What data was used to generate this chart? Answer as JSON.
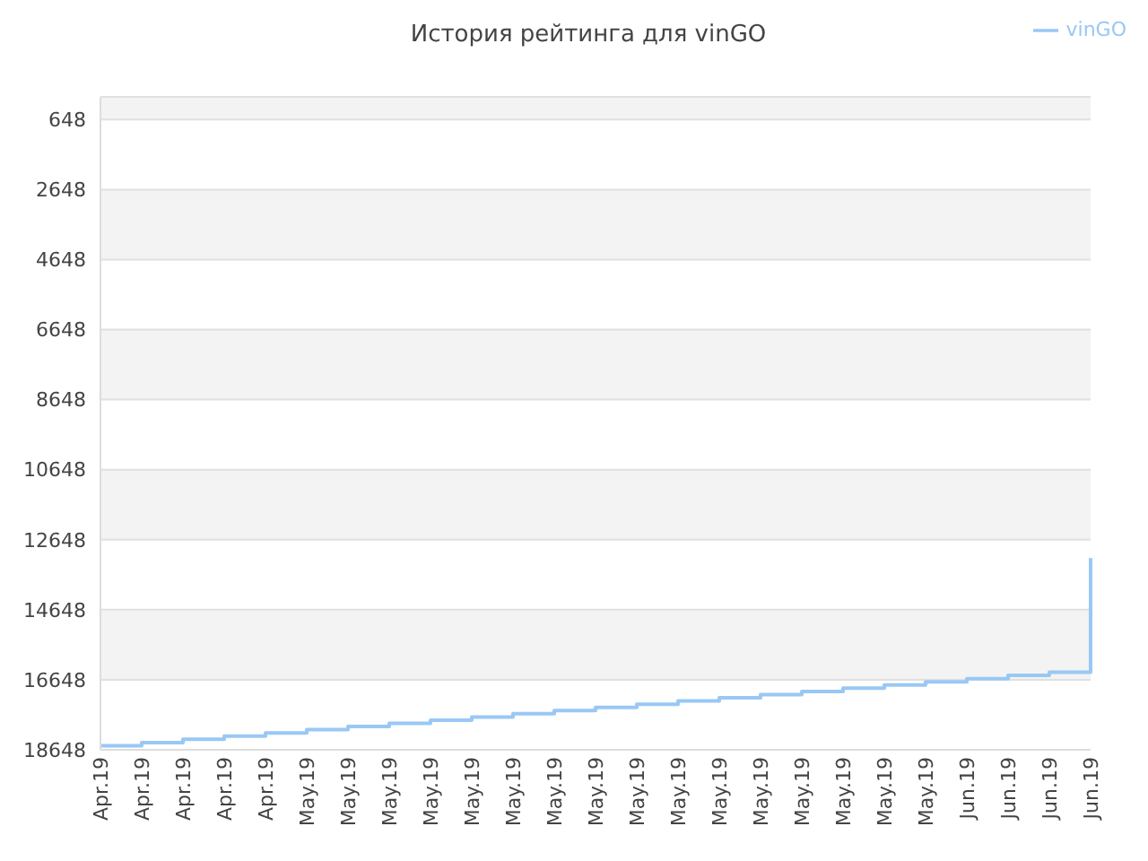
{
  "chart_data": {
    "type": "step",
    "title": "История рейтинга для vinGO",
    "categories": [
      "Apr.19",
      "Apr.19",
      "Apr.19",
      "Apr.19",
      "Apr.19",
      "May.19",
      "May.19",
      "May.19",
      "May.19",
      "May.19",
      "May.19",
      "May.19",
      "May.19",
      "May.19",
      "May.19",
      "May.19",
      "May.19",
      "May.19",
      "May.19",
      "May.19",
      "May.19",
      "Jun.19",
      "Jun.19",
      "Jun.19",
      "Jun.19"
    ],
    "series": [
      {
        "name": "vinGO",
        "color": "#99c8f5",
        "values": [
          18530,
          18440,
          18350,
          18260,
          18170,
          18070,
          17980,
          17890,
          17800,
          17710,
          17620,
          17530,
          17440,
          17350,
          17250,
          17160,
          17070,
          16980,
          16890,
          16800,
          16710,
          16620,
          16520,
          16430,
          13170
        ]
      }
    ],
    "ylim": [
      18648,
      0
    ],
    "yticks": [
      648,
      2648,
      4648,
      6648,
      8648,
      10648,
      12648,
      14648,
      16648,
      18648
    ],
    "grid": "y",
    "legend": "top right"
  }
}
